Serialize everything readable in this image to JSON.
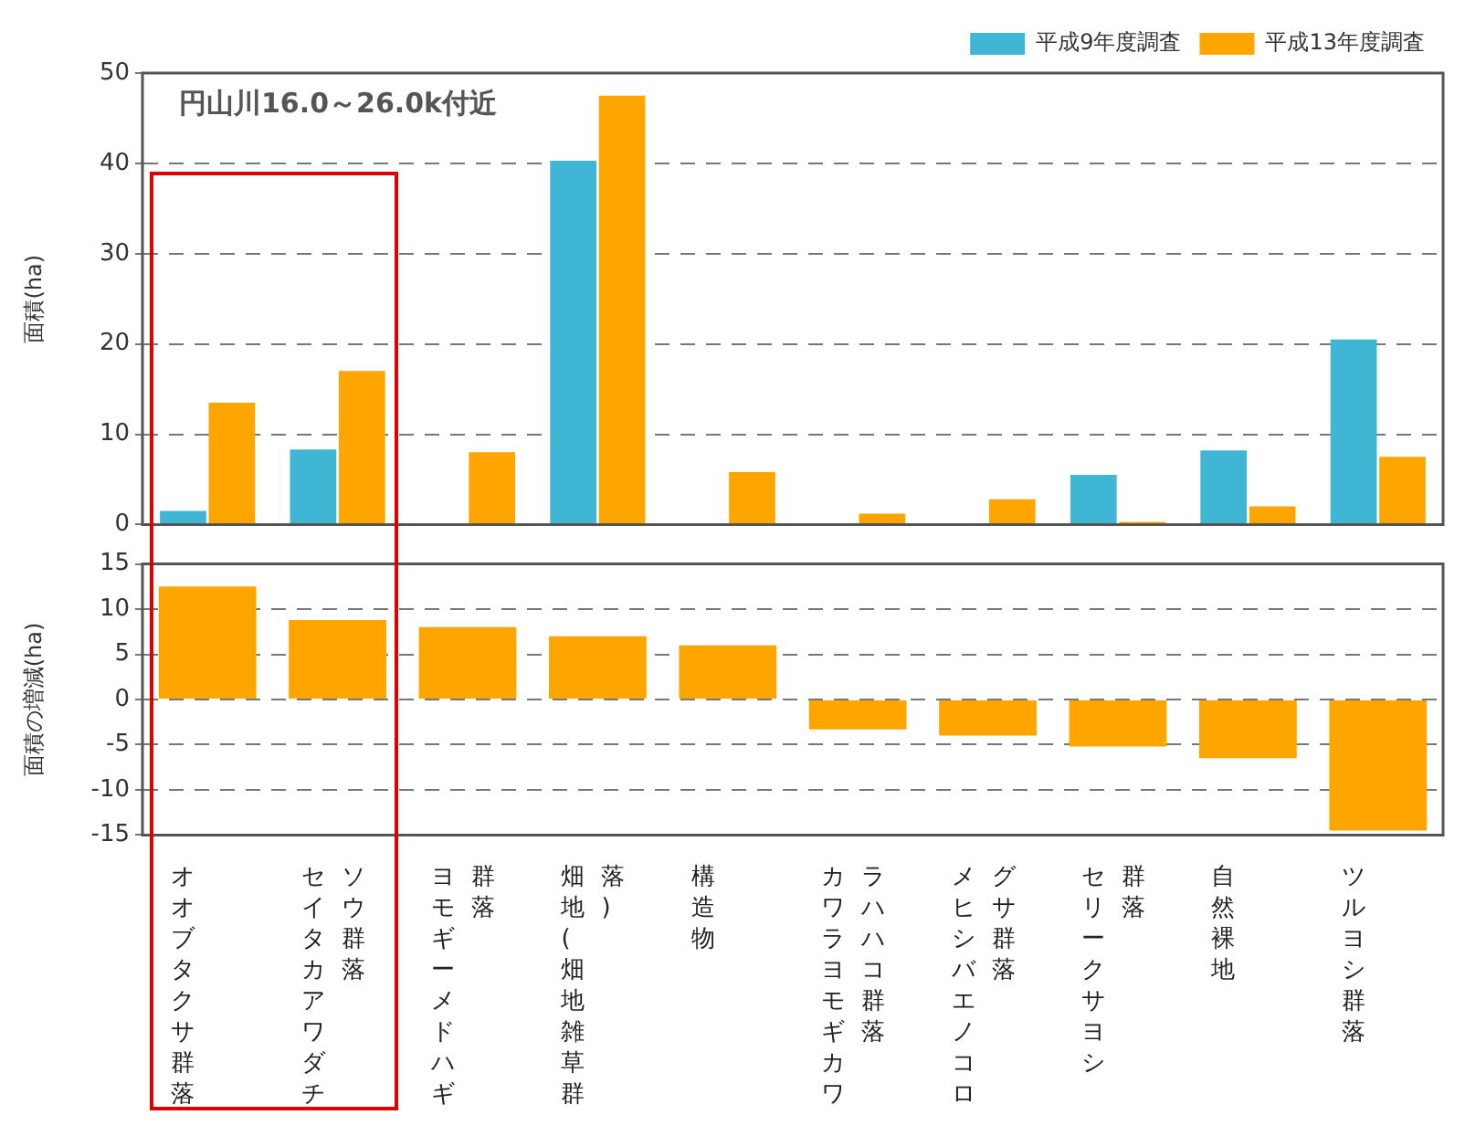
{
  "chart_data": [
    {
      "type": "bar",
      "ylabel": "面積(ha)",
      "annotations": [
        "円山川16.0～26.0k付近"
      ],
      "categories": [
        null,
        null,
        null,
        null,
        null,
        null,
        null,
        null,
        null,
        null
      ],
      "series": [
        {
          "name": "平成9年度調査",
          "color": "#3fb6d4",
          "values": [
            1.5,
            8.3,
            0,
            40.3,
            0,
            0,
            0,
            5.5,
            8.2,
            20.5
          ]
        },
        {
          "name": "平成13年度調査",
          "color": "#ffa500",
          "values": [
            13.5,
            17,
            8,
            47.5,
            5.8,
            1.2,
            2.8,
            0.3,
            2,
            7.5
          ]
        }
      ],
      "ylim": [
        0,
        50
      ],
      "yticks": [
        0,
        10,
        20,
        30,
        40,
        50
      ],
      "grid": "y",
      "legend": "top right",
      "tick_labels": "y"
    },
    {
      "type": "bar",
      "ylabel": "面積の増減(ha)",
      "categories": [
        "オオブタクサ群落",
        "セイタカアワダチソウ群落",
        "ヨモギーメドハギ群落",
        "畑地(畑地雑草群落)",
        "構造物",
        "カワラヨモギカワラハハコ群落",
        "メヒシバエノコログサ群落",
        "セリークサヨシ群落",
        "自然裸地",
        "ツルヨシ群落"
      ],
      "values": [
        12.5,
        8.8,
        8,
        7,
        6,
        -3.3,
        -4,
        -5.2,
        -6.5,
        -14.5
      ],
      "color": "#ffa500",
      "ylim": [
        -15,
        15
      ],
      "yticks": [
        -15,
        -10,
        -5,
        0,
        5,
        10,
        15
      ],
      "grid": "y"
    }
  ]
}
